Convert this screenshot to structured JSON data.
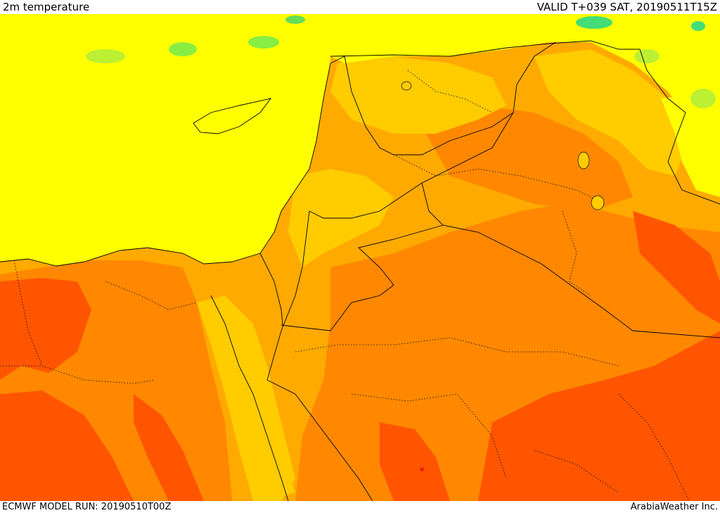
{
  "header": {
    "title": "2m temperature",
    "valid": "VALID T+039 SAT, 20190511T15Z"
  },
  "footer": {
    "model_run": "ECMWF MODEL RUN: 20190510T00Z",
    "credit": "ArabiaWeather Inc."
  },
  "map": {
    "field": "2m temperature",
    "colors": {
      "sea_yellow": "#ffff00",
      "light_orange": "#ffcc00",
      "orange": "#ffaa00",
      "dark_orange": "#ff8800",
      "red_orange": "#ff5500",
      "green": "#88ee44",
      "light_green": "#bbf033",
      "deep_red": "#ee2200",
      "border_line": "#000000"
    }
  }
}
